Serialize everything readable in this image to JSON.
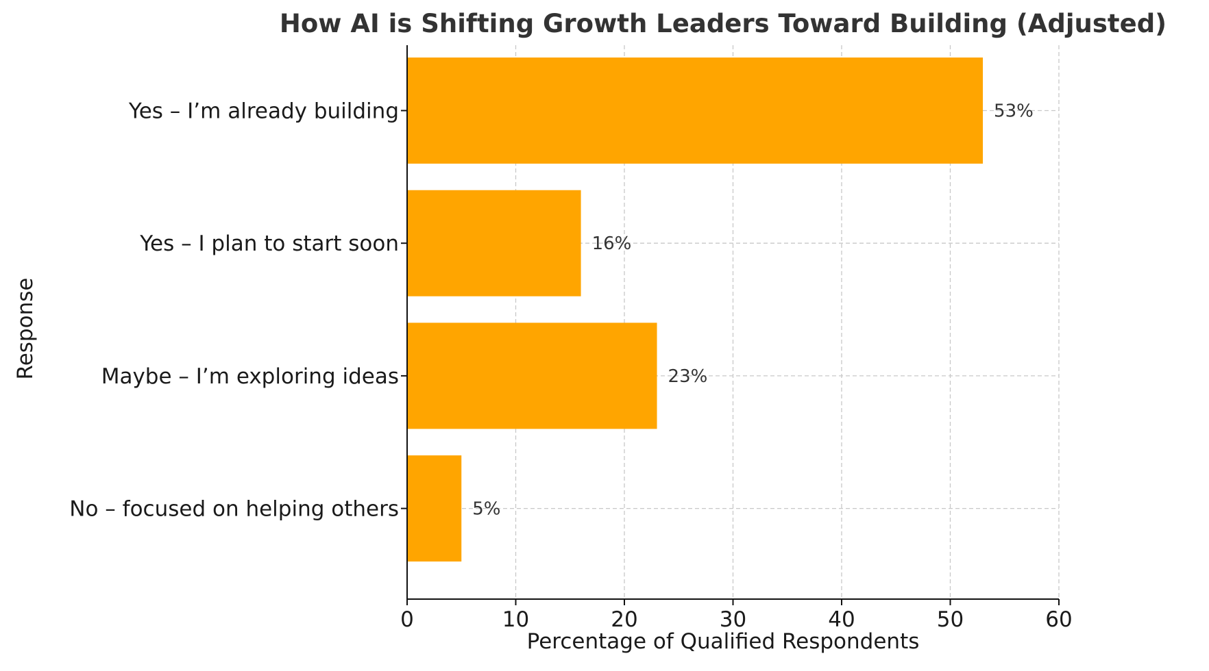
{
  "chart_data": {
    "type": "bar",
    "orientation": "horizontal",
    "title": "How AI is Shifting Growth Leaders Toward Building (Adjusted)",
    "xlabel": "Percentage of Qualified Respondents",
    "ylabel": "Response",
    "categories": [
      "Yes – I’m already building",
      "Yes – I plan to start soon",
      "Maybe – I’m exploring ideas",
      "No – focused on helping others"
    ],
    "values": [
      53,
      16,
      23,
      5
    ],
    "data_labels": [
      "53%",
      "16%",
      "23%",
      "5%"
    ],
    "xlim": [
      0,
      60
    ],
    "xticks": [
      0,
      10,
      20,
      30,
      40,
      50,
      60
    ],
    "grid": true,
    "bar_color": "#ffa500"
  }
}
